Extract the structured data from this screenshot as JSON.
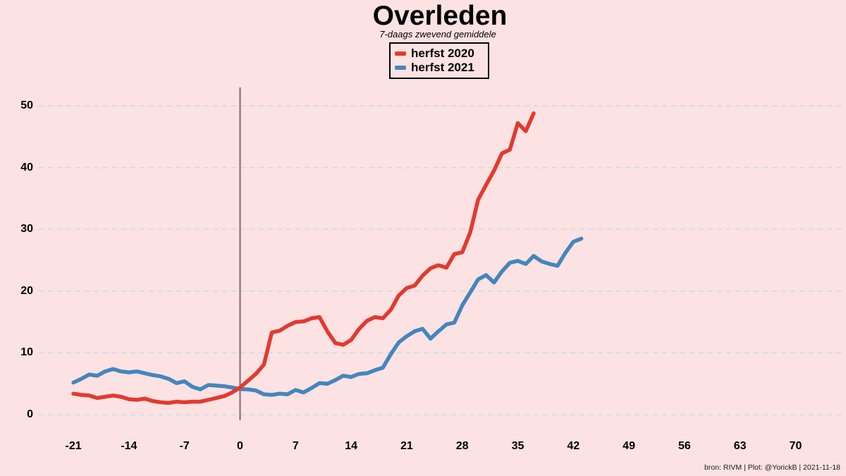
{
  "header": {
    "title": "Overleden",
    "subtitle": "7-daags zwevend gemiddele"
  },
  "legend": {
    "items": [
      {
        "label": "herfst 2020",
        "color": "#e23a30"
      },
      {
        "label": "herfst 2021",
        "color": "#4486bd"
      }
    ]
  },
  "footer": {
    "attribution": "bron: RIVM  | Plot: @YorickB |  2021-11-18"
  },
  "colors": {
    "background": "#fce2e2",
    "gridline": "#ccdcdf",
    "zero_day_line": "#6e6e6e",
    "text": "#000000"
  },
  "chart_data": {
    "type": "line",
    "title": "Overleden",
    "subtitle": "7-daags zwevend gemiddele",
    "xlabel": "",
    "ylabel": "",
    "grid": "horizontal-dashed",
    "legend_position": "top-center",
    "x_ticks": [
      -21,
      -14,
      -7,
      0,
      7,
      14,
      21,
      28,
      35,
      42,
      49,
      56,
      63,
      70
    ],
    "y_ticks": [
      0,
      10,
      20,
      30,
      40,
      50
    ],
    "xlim": [
      -25.4,
      75.7
    ],
    "ylim": [
      -0.9,
      53.0
    ],
    "vertical_marker_x": 0,
    "series": [
      {
        "name": "herfst 2021",
        "color": "#4486bd",
        "x_start": -21,
        "x_step": 1,
        "values": [
          5.2,
          5.8,
          6.5,
          6.3,
          7.0,
          7.4,
          7.0,
          6.85,
          7.0,
          6.7,
          6.4,
          6.2,
          5.8,
          5.1,
          5.4,
          4.5,
          4.1,
          4.8,
          4.7,
          4.6,
          4.4,
          4.15,
          4.1,
          3.9,
          3.3,
          3.2,
          3.4,
          3.3,
          4.0,
          3.6,
          4.3,
          5.1,
          5.0,
          5.6,
          6.3,
          6.1,
          6.6,
          6.7,
          7.2,
          7.6,
          9.8,
          11.7,
          12.7,
          13.5,
          13.9,
          12.3,
          13.5,
          14.6,
          14.9,
          17.7,
          19.8,
          21.9,
          22.6,
          21.4,
          23.2,
          24.6,
          24.9,
          24.4,
          25.7,
          24.8,
          24.4,
          24.1,
          26.2,
          28.0,
          28.5
        ]
      },
      {
        "name": "herfst 2020",
        "color": "#e23a30",
        "x_start": -21,
        "x_step": 1,
        "values": [
          3.4,
          3.2,
          3.1,
          2.7,
          2.9,
          3.1,
          2.9,
          2.5,
          2.4,
          2.6,
          2.2,
          2.0,
          1.9,
          2.1,
          2.0,
          2.1,
          2.1,
          2.4,
          2.7,
          3.0,
          3.6,
          4.4,
          5.5,
          6.6,
          8.1,
          13.3,
          13.6,
          14.4,
          15.0,
          15.1,
          15.6,
          15.8,
          13.5,
          11.6,
          11.3,
          12.1,
          13.9,
          15.2,
          15.8,
          15.6,
          17.0,
          19.3,
          20.5,
          20.9,
          22.5,
          23.7,
          24.2,
          23.8,
          26.0,
          26.3,
          29.5,
          34.8,
          37.2,
          39.5,
          42.3,
          42.9,
          47.2,
          45.9,
          48.8
        ]
      }
    ]
  }
}
